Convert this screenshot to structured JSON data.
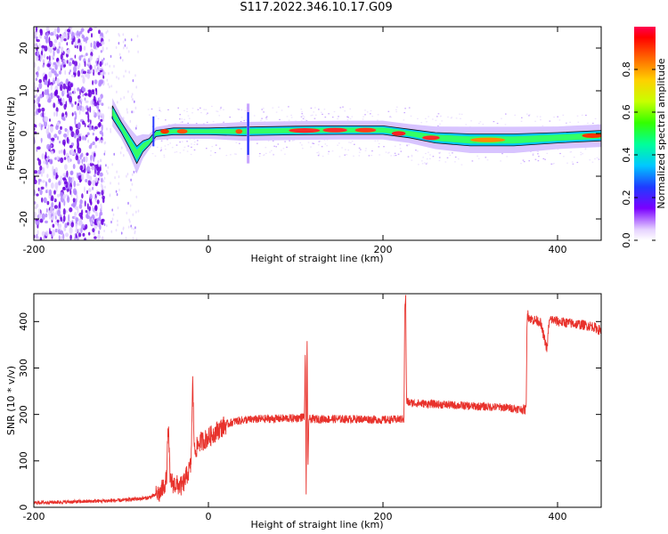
{
  "title": "S117.2022.346.10.17.G09",
  "colors": {
    "snr_line": "#e8322c",
    "ridge_outline": "#111111"
  },
  "chart_data": [
    {
      "type": "heatmap",
      "xlabel": "Height of straight line (km)",
      "ylabel": "Frequency (Hz)",
      "xlim": [
        -200,
        450
      ],
      "ylim": [
        -25,
        25
      ],
      "xticks": [
        -200,
        0,
        200,
        400
      ],
      "yticks": [
        -20,
        -10,
        0,
        10,
        20
      ],
      "colorbar": {
        "label": "Normalized spectral amplitude",
        "range": [
          0,
          1
        ],
        "ticks": [
          "0.0",
          "0.2",
          "0.4",
          "0.6",
          "0.8"
        ],
        "tick_values": [
          0.0,
          0.2,
          0.4,
          0.6,
          0.8
        ]
      },
      "ridge": {
        "x": [
          -110,
          -100,
          -90,
          -82,
          -75,
          -68,
          -60,
          -40,
          -20,
          0,
          40,
          100,
          150,
          200,
          230,
          260,
          300,
          350,
          400,
          450
        ],
        "freq_hz": [
          5,
          1.5,
          -2,
          -5,
          -3,
          -2,
          0,
          0.5,
          0.5,
          0.5,
          0.5,
          0.7,
          0.8,
          0.8,
          0,
          -1,
          -1.5,
          -1.5,
          -1,
          -0.5
        ],
        "halfwidth_hz": [
          1.5,
          1.2,
          1.5,
          2,
          1.3,
          0.8,
          0.7,
          0.8,
          0.8,
          0.8,
          1,
          1,
          1,
          1,
          1,
          1.2,
          1.4,
          1.4,
          1.2,
          1.2
        ]
      }
    },
    {
      "type": "line",
      "xlabel": "Height of straight line (km)",
      "ylabel": "SNR (10 * v/v)",
      "xlim": [
        -200,
        450
      ],
      "ylim": [
        0,
        460
      ],
      "xticks": [
        -200,
        0,
        200,
        400
      ],
      "yticks": [
        0,
        100,
        200,
        300,
        400
      ],
      "series": [
        {
          "name": "SNR",
          "x": [
            -200,
            -150,
            -100,
            -70,
            -55,
            -48,
            -46,
            -44,
            -40,
            -30,
            -20,
            -18,
            -16,
            -10,
            0,
            10,
            20,
            30,
            40,
            60,
            100,
            110,
            111,
            112,
            113,
            114,
            115,
            130,
            180,
            200,
            224,
            225,
            226,
            227,
            228,
            229,
            230,
            260,
            300,
            340,
            364,
            365,
            366,
            367,
            370,
            380,
            388,
            390,
            392,
            400,
            420,
            440,
            450
          ],
          "y": [
            10,
            12,
            15,
            20,
            30,
            60,
            180,
            60,
            50,
            45,
            90,
            270,
            120,
            140,
            150,
            165,
            178,
            185,
            188,
            190,
            192,
            195,
            345,
            30,
            375,
            70,
            190,
            190,
            190,
            188,
            190,
            430,
            455,
            225,
            228,
            226,
            225,
            222,
            218,
            215,
            210,
            395,
            420,
            410,
            405,
            400,
            340,
            395,
            405,
            400,
            395,
            390,
            380
          ]
        }
      ]
    }
  ]
}
